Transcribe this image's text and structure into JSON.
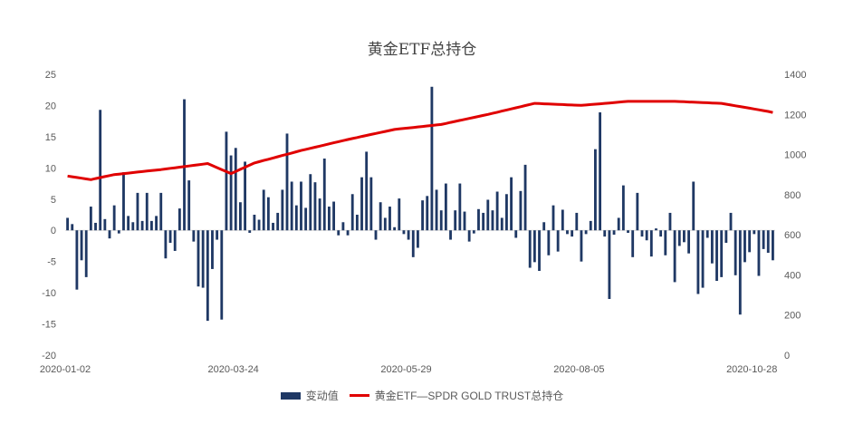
{
  "chart_data": {
    "type": "bar+line",
    "title": "黄金ETF总持仓",
    "x_tick_labels": [
      "2020-01-02",
      "2020-03-24",
      "2020-05-29",
      "2020-08-05",
      "2020-10-28"
    ],
    "y_left": {
      "ticks": [
        25,
        20,
        15,
        10,
        5,
        0,
        -5,
        -10,
        -15,
        -20
      ],
      "range": [
        -20,
        25
      ]
    },
    "y_right": {
      "ticks": [
        1400,
        1200,
        1000,
        800,
        600,
        400,
        200,
        0
      ],
      "range": [
        0,
        1400
      ]
    },
    "grid": false,
    "legend_position": "bottom",
    "colors": {
      "bars": "#1f3864",
      "line": "#e00000"
    },
    "series": [
      {
        "name": "变动值",
        "type": "bar",
        "axis": "left",
        "values": [
          2,
          1,
          -9.5,
          -4.8,
          -7.5,
          3.8,
          1.2,
          19.3,
          1.8,
          -1.3,
          4,
          -0.5,
          9.3,
          2.3,
          1.3,
          6,
          1.5,
          6,
          1.5,
          2.3,
          6,
          -4.5,
          -2,
          -3.3,
          3.5,
          21,
          8,
          -1.8,
          -9,
          -9.2,
          -14.5,
          -6.2,
          -1.5,
          -14.3,
          15.8,
          12,
          13.2,
          4.5,
          11,
          -0.4,
          2.5,
          1.7,
          6.5,
          5.3,
          1.2,
          2.8,
          6.5,
          15.5,
          7.8,
          4,
          7.8,
          3.6,
          9,
          7.7,
          5.1,
          11.5,
          3.8,
          4.6,
          -0.8,
          1.3,
          -0.8,
          5.8,
          2.5,
          8.5,
          12.6,
          8.5,
          -1.5,
          4.5,
          2,
          3.8,
          0.5,
          5.1,
          -0.6,
          -1.5,
          -4.3,
          -2.8,
          4.8,
          5.5,
          23,
          6.5,
          3.2,
          7.5,
          -1.5,
          3.2,
          7.5,
          3,
          -1.8,
          -0.5,
          3.4,
          2.8,
          4.9,
          3.2,
          6.2,
          2,
          5.8,
          8.5,
          -1.2,
          6.3,
          10.5,
          -6,
          -5.1,
          -6.5,
          1.3,
          -4,
          4,
          -3.4,
          3.3,
          -0.6,
          -1,
          2.8,
          -5,
          -0.6,
          1.5,
          13,
          18.9,
          -1,
          -11,
          -0.7,
          2,
          7.2,
          -0.4,
          -4.3,
          6,
          -1,
          -1.6,
          -4.2,
          0.3,
          -1,
          -4,
          2.8,
          -8.3,
          -2.5,
          -1.9,
          -3.7,
          7.8,
          -10.2,
          -9.2,
          -1.2,
          -5.3,
          -8.1,
          -7.5,
          -2,
          2.8,
          -7.2,
          -13.5,
          -5.1,
          -3.5,
          -0.6,
          -7.3,
          -3,
          -3.6,
          -4.8
        ]
      },
      {
        "name": "黄金ETF—SPDR GOLD TRUST总持仓",
        "type": "line",
        "axis": "right",
        "x_index": [
          0,
          5,
          10,
          20,
          30,
          35,
          40,
          50,
          60,
          70,
          80,
          90,
          100,
          110,
          120,
          130,
          140,
          150,
          158
        ],
        "values": [
          893,
          875,
          900,
          925,
          955,
          905,
          958,
          1020,
          1075,
          1125,
          1150,
          1200,
          1255,
          1245,
          1265,
          1265,
          1255,
          1215,
          1170
        ]
      }
    ]
  }
}
